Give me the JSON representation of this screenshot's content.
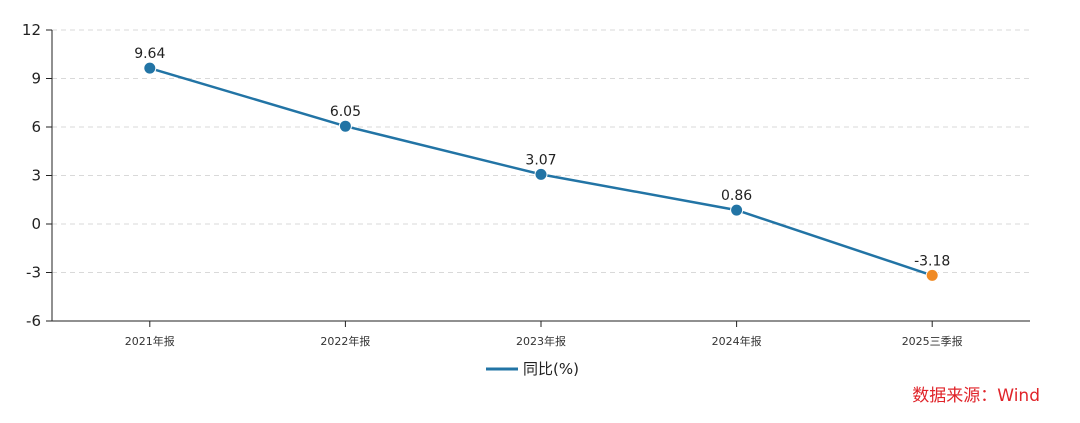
{
  "chart_data": {
    "type": "line",
    "categories": [
      "2021年报",
      "2022年报",
      "2023年报",
      "2024年报",
      "2025三季报"
    ],
    "series": [
      {
        "name": "同比(%)",
        "values": [
          9.64,
          6.05,
          3.07,
          0.86,
          -3.18
        ]
      }
    ],
    "data_labels": [
      "9.64",
      "6.05",
      "3.07",
      "0.86",
      "-3.18"
    ],
    "ylim": [
      -6,
      12
    ],
    "yticks": [
      12,
      9,
      6,
      3,
      0,
      -3,
      -6
    ],
    "grid": true,
    "legend": "bottom-center",
    "colors": {
      "line": "#2274a5",
      "highlight_point": "#f08a24",
      "grid": "#d9d9d9"
    }
  },
  "source_text": "数据来源：Wind"
}
